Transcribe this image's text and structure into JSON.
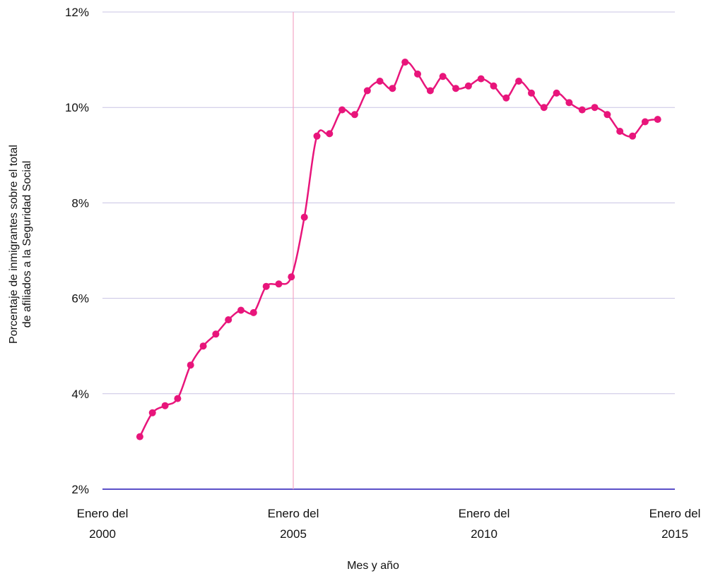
{
  "chart_data": {
    "type": "line",
    "ylabel": [
      "Porcentaje de inmigrantes sobre el total",
      "de afiliados a la Seguridad Social"
    ],
    "xlabel": "Mes y año",
    "ylim": [
      2,
      12
    ],
    "xlim": [
      2000.0,
      2015.0
    ],
    "y_ticks": [
      "2%",
      "4%",
      "6%",
      "8%",
      "10%",
      "12%"
    ],
    "y_tick_values": [
      2,
      4,
      6,
      8,
      10,
      12
    ],
    "x_ticks": [
      {
        "value": 2000,
        "line1": "Enero del",
        "line2": "2000"
      },
      {
        "value": 2005,
        "line1": "Enero del",
        "line2": "2005"
      },
      {
        "value": 2010,
        "line1": "Enero del",
        "line2": "2010"
      },
      {
        "value": 2015,
        "line1": "Enero del",
        "line2": "2015"
      }
    ],
    "reference_line_x": 2005,
    "grid": true,
    "colors": {
      "series": "#E8157B",
      "grid": "#C9C3E3",
      "baseline": "#5B4FC8",
      "reference": "#F2A6C6"
    },
    "series": [
      {
        "marker": "circle",
        "x": [
          2000.98,
          2001.31,
          2001.64,
          2001.97,
          2002.31,
          2002.64,
          2002.97,
          2003.3,
          2003.63,
          2003.96,
          2004.29,
          2004.62,
          2004.95,
          2005.29,
          2005.62,
          2005.95,
          2006.28,
          2006.61,
          2006.94,
          2007.27,
          2007.6,
          2007.93,
          2008.26,
          2008.59,
          2008.92,
          2009.26,
          2009.59,
          2009.92,
          2010.25,
          2010.58,
          2010.91,
          2011.24,
          2011.57,
          2011.9,
          2012.23,
          2012.57,
          2012.9,
          2013.23,
          2013.56,
          2013.89,
          2014.22,
          2014.55
        ],
        "values": [
          3.1,
          3.6,
          3.75,
          3.9,
          4.6,
          5.0,
          5.25,
          5.55,
          5.75,
          5.7,
          6.25,
          6.3,
          6.45,
          7.7,
          9.4,
          9.45,
          9.95,
          9.85,
          10.35,
          10.55,
          10.4,
          10.95,
          10.7,
          10.35,
          10.65,
          10.4,
          10.45,
          10.6,
          10.45,
          10.2,
          10.55,
          10.3,
          10.0,
          10.3,
          10.1,
          9.95,
          10.0,
          9.85,
          9.5,
          9.4,
          9.7,
          9.75
        ]
      }
    ]
  }
}
